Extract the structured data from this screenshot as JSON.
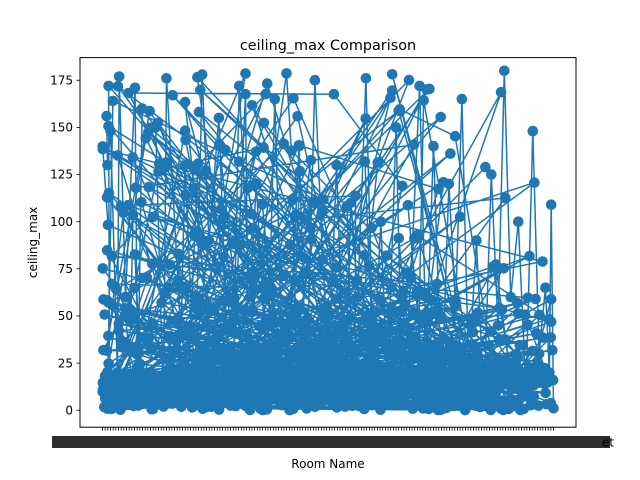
{
  "chart_data": {
    "type": "line",
    "title": "ceiling_max Comparison",
    "xlabel": "Room Name",
    "ylabel": "ceiling_max",
    "ylim": [
      -9,
      187
    ],
    "yticks": [
      0,
      25,
      50,
      75,
      100,
      125,
      150,
      175
    ],
    "grid": false,
    "legend": "none",
    "marker": "circle",
    "color": "#1f77b4",
    "x_tick_labels_note": "ticks at every category; labels overlap and are unreadable",
    "x_visible_label_end": "et",
    "series": [
      {
        "x": [
          0.009,
          0.011,
          0.018,
          0.033,
          0.037,
          0.051,
          0.072,
          0.078,
          0.088,
          0.118,
          0.135,
          0.142,
          0.174,
          0.183,
          0.205,
          0.221,
          0.236,
          0.258,
          0.277,
          0.289,
          0.303,
          0.327,
          0.341,
          0.365,
          0.382,
          0.401,
          0.418,
          0.436,
          0.452,
          0.471,
          0.488,
          0.502,
          0.519,
          0.537,
          0.551,
          0.566,
          0.584,
          0.601,
          0.617,
          0.632,
          0.651,
          0.665,
          0.684,
          0.703,
          0.718,
          0.734,
          0.752,
          0.768,
          0.783,
          0.797,
          0.812,
          0.829,
          0.846,
          0.862,
          0.877,
          0.891,
          0.905,
          0.922,
          0.939,
          0.954,
          0.968,
          0.982,
          0.991,
          0.995,
          1.0
        ],
        "y": [
          156,
          130,
          148,
          20,
          177,
          60,
          171,
          8,
          160,
          150,
          2,
          176,
          40,
          130,
          10,
          178,
          90,
          155,
          30,
          5,
          172,
          60,
          120,
          15,
          165,
          3,
          50,
          140,
          10,
          175,
          80,
          25,
          130,
          5,
          110,
          60,
          176,
          20,
          100,
          12,
          150,
          4,
          70,
          172,
          30,
          140,
          8,
          120,
          55,
          165,
          18,
          90,
          5,
          125,
          45,
          180,
          60,
          100,
          10,
          148,
          30,
          65,
          20,
          109,
          1
        ]
      }
    ]
  }
}
